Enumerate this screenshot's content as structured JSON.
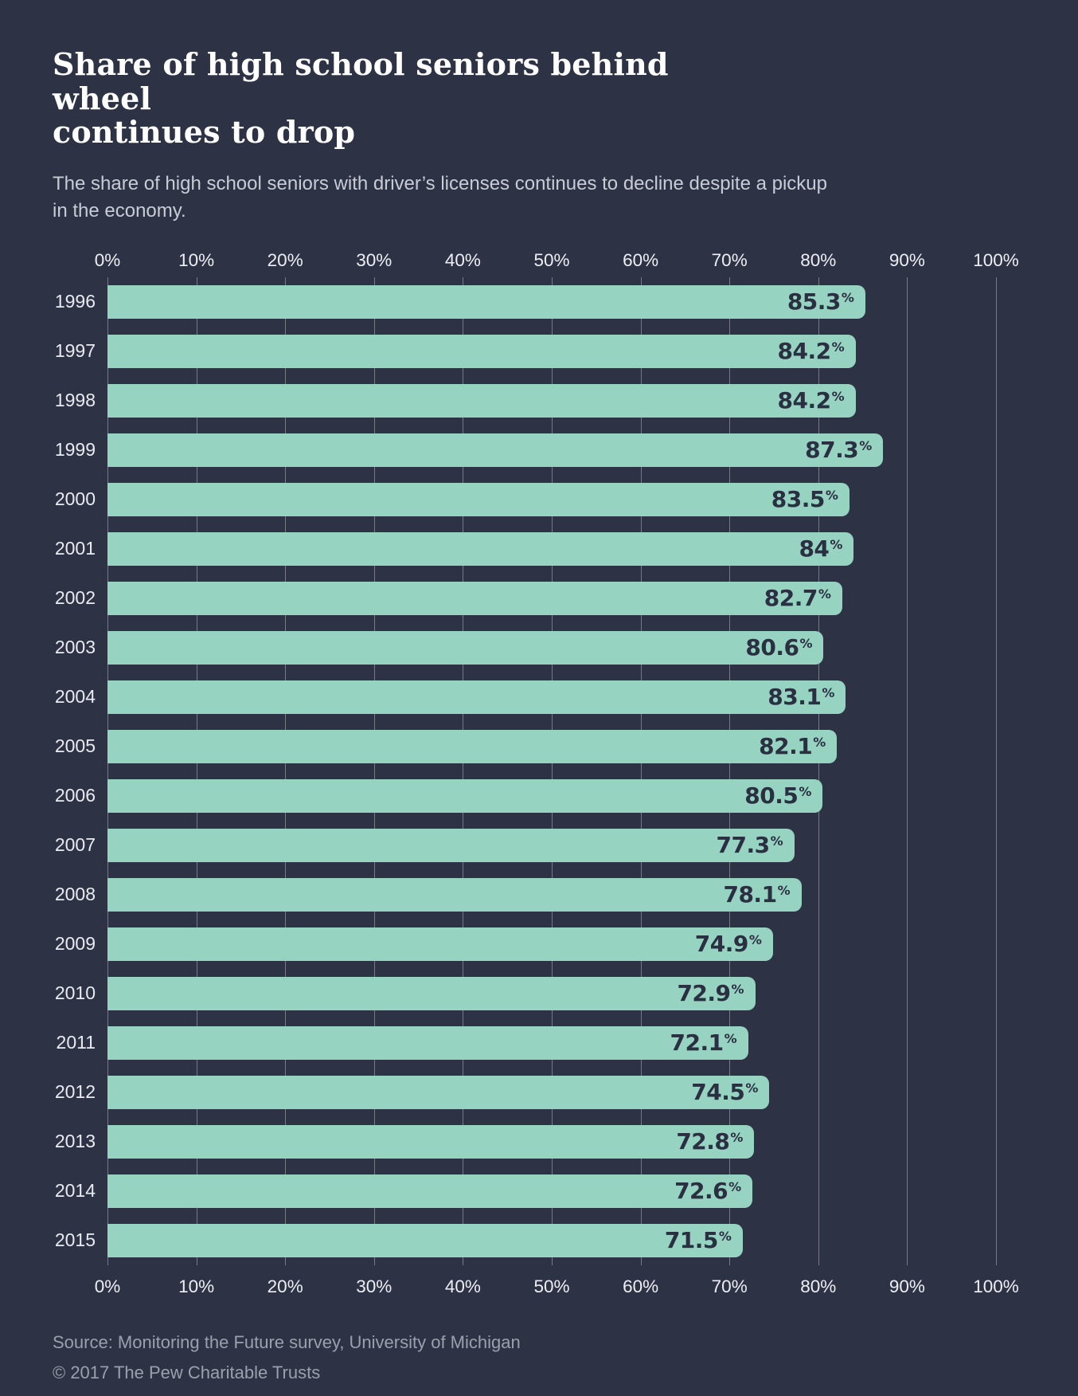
{
  "title_lines": [
    "Share of high school seniors behind wheel",
    "continues to drop"
  ],
  "subtitle_lines": [
    "The share of high school seniors with driver’s licenses continues to decline despite a pickup",
    "in the economy."
  ],
  "source": "Source: Monitoring the Future survey, University of Michigan",
  "copyright": "© 2017 The Pew Charitable Trusts",
  "colors": {
    "background": "#2e3245",
    "bar": "#96d3c0",
    "bar_label": "#2b2f42",
    "gridline": "rgba(255,255,255,0.35)",
    "axis_label": "#edeff3",
    "year_label": "#e9ebf0",
    "subtitle": "#c8ccd5",
    "source": "#9aa0ac"
  },
  "chart_data": {
    "type": "bar",
    "orientation": "horizontal",
    "title": "Share of high school seniors behind wheel continues to drop",
    "subtitle": "The share of high school seniors with driver’s licenses continues to decline despite a pickup in the economy.",
    "xlabel": "",
    "ylabel": "",
    "xlim": [
      0,
      100
    ],
    "grid": true,
    "axis_tick_labels": [
      "0%",
      "10%",
      "20%",
      "30%",
      "40%",
      "50%",
      "60%",
      "70%",
      "80%",
      "90%",
      "100%"
    ],
    "axis_positions": [
      "top",
      "bottom"
    ],
    "unit": "%",
    "categories": [
      "1996",
      "1997",
      "1998",
      "1999",
      "2000",
      "2001",
      "2002",
      "2003",
      "2004",
      "2005",
      "2006",
      "2007",
      "2008",
      "2009",
      "2010",
      "2011",
      "2012",
      "2013",
      "2014",
      "2015"
    ],
    "values": [
      85.3,
      84.2,
      84.2,
      87.3,
      83.5,
      84,
      82.7,
      80.6,
      83.1,
      82.1,
      80.5,
      77.3,
      78.1,
      74.9,
      72.9,
      72.1,
      74.5,
      72.8,
      72.6,
      71.5
    ],
    "value_labels": [
      "85.3",
      "84.2",
      "84.2",
      "87.3",
      "83.5",
      "84",
      "82.7",
      "80.6",
      "83.1",
      "82.1",
      "80.5",
      "77.3",
      "78.1",
      "74.9",
      "72.9",
      "72.1",
      "74.5",
      "72.8",
      "72.6",
      "71.5"
    ]
  }
}
